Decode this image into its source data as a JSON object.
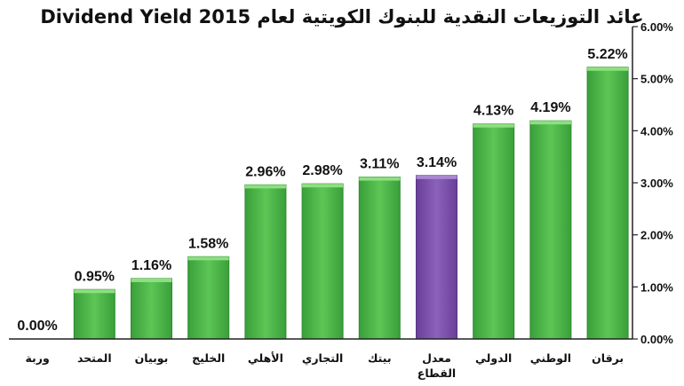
{
  "chart_data": {
    "type": "bar",
    "title": "عائد التوزيعات النقدية للبنوك الكويتية لعام 2015 Dividend Yield",
    "categories": [
      "وربة",
      "المتحد",
      "بوبيان",
      "الخليج",
      "الأهلي",
      "التجاري",
      "بيتك",
      "معدل القطاع",
      "الدولي",
      "الوطني",
      "برقان"
    ],
    "values": [
      0.0,
      0.95,
      1.16,
      1.58,
      2.96,
      2.98,
      3.11,
      3.14,
      4.13,
      4.19,
      5.22
    ],
    "data_labels": [
      "0.00%",
      "0.95%",
      "1.16%",
      "1.58%",
      "2.96%",
      "2.98%",
      "3.11%",
      "3.14%",
      "4.13%",
      "4.19%",
      "5.22%"
    ],
    "ylim": [
      0,
      6
    ],
    "y_ticks": [
      "0.00%",
      "1.00%",
      "2.00%",
      "3.00%",
      "4.00%",
      "5.00%",
      "6.00%"
    ],
    "y_axis_side": "right",
    "grid": false,
    "bar_color": "#4cb848",
    "highlight_color": "#7a4ea8",
    "highlight_category": "معدل القطاع"
  }
}
